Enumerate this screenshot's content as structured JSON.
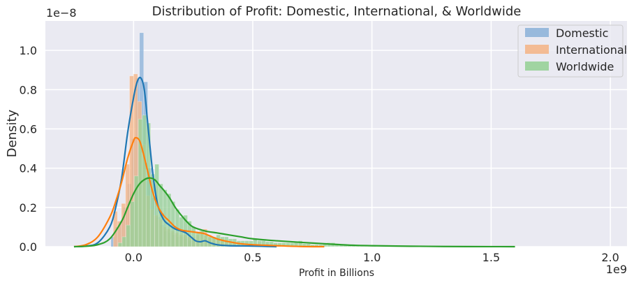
{
  "chart_data": {
    "type": "histogram-kde",
    "title": "Distribution of Profit: Domestic, International, & Worldwide",
    "xlabel": "Profit in Billions",
    "ylabel": "Density",
    "x_offset_label": "1e9",
    "y_offset_label": "1e−8",
    "xlim": [
      -0.37,
      2.07
    ],
    "ylim": [
      0,
      1.15
    ],
    "x_ticks": [
      0.0,
      0.5,
      1.0,
      1.5,
      2.0
    ],
    "x_tick_labels": [
      "0.0",
      "0.5",
      "1.0",
      "1.5",
      "2.0"
    ],
    "y_ticks": [
      0.0,
      0.2,
      0.4,
      0.6,
      0.8,
      1.0
    ],
    "y_tick_labels": [
      "0.0",
      "0.2",
      "0.4",
      "0.6",
      "0.8",
      "1.0"
    ],
    "grid": true,
    "legend_position": "top-right",
    "series": [
      {
        "name": "Domestic",
        "bar_color": "#8fb4d9",
        "line_color": "#1f77b4",
        "bin_width": 0.0172,
        "bins": [
          [
            -0.095,
            0.05
          ],
          [
            -0.078,
            0.1
          ],
          [
            -0.061,
            0.13
          ],
          [
            -0.044,
            0.2
          ],
          [
            -0.026,
            0.32
          ],
          [
            -0.009,
            0.55
          ],
          [
            0.008,
            0.86
          ],
          [
            0.025,
            1.09
          ],
          [
            0.042,
            0.84
          ],
          [
            0.059,
            0.4
          ],
          [
            0.077,
            0.25
          ],
          [
            0.094,
            0.15
          ],
          [
            0.111,
            0.11
          ],
          [
            0.128,
            0.08
          ],
          [
            0.145,
            0.07
          ],
          [
            0.163,
            0.06
          ],
          [
            0.18,
            0.05
          ],
          [
            0.197,
            0.05
          ],
          [
            0.214,
            0.04
          ],
          [
            0.231,
            0.03
          ],
          [
            0.249,
            0.03
          ],
          [
            0.266,
            0.02
          ],
          [
            0.283,
            0.02
          ],
          [
            0.3,
            0.03
          ],
          [
            0.317,
            0.02
          ],
          [
            0.335,
            0.02
          ],
          [
            0.352,
            0.01
          ],
          [
            0.369,
            0.01
          ],
          [
            0.386,
            0.01
          ],
          [
            0.403,
            0.01
          ],
          [
            0.421,
            0.01
          ],
          [
            0.438,
            0.005
          ],
          [
            0.455,
            0.005
          ],
          [
            0.472,
            0.005
          ],
          [
            0.49,
            0.005
          ],
          [
            0.507,
            0.005
          ],
          [
            0.524,
            0.005
          ],
          [
            0.541,
            0.005
          ],
          [
            0.558,
            0.005
          ],
          [
            0.576,
            0.005
          ]
        ],
        "kde": [
          [
            -0.25,
            0.0
          ],
          [
            -0.2,
            0.003
          ],
          [
            -0.15,
            0.02
          ],
          [
            -0.1,
            0.1
          ],
          [
            -0.075,
            0.2
          ],
          [
            -0.05,
            0.35
          ],
          [
            -0.025,
            0.58
          ],
          [
            0.0,
            0.76
          ],
          [
            0.015,
            0.84
          ],
          [
            0.03,
            0.86
          ],
          [
            0.045,
            0.8
          ],
          [
            0.06,
            0.62
          ],
          [
            0.08,
            0.38
          ],
          [
            0.1,
            0.22
          ],
          [
            0.125,
            0.14
          ],
          [
            0.15,
            0.11
          ],
          [
            0.175,
            0.09
          ],
          [
            0.2,
            0.08
          ],
          [
            0.22,
            0.07
          ],
          [
            0.24,
            0.05
          ],
          [
            0.26,
            0.03
          ],
          [
            0.28,
            0.025
          ],
          [
            0.3,
            0.03
          ],
          [
            0.32,
            0.02
          ],
          [
            0.35,
            0.01
          ],
          [
            0.4,
            0.005
          ],
          [
            0.5,
            0.003
          ],
          [
            0.6,
            0.0
          ]
        ]
      },
      {
        "name": "International",
        "bar_color": "#f4b68a",
        "line_color": "#ff7f0e",
        "bin_width": 0.0172,
        "bins": [
          [
            -0.085,
            0.18
          ],
          [
            -0.068,
            0.13
          ],
          [
            -0.051,
            0.22
          ],
          [
            -0.034,
            0.42
          ],
          [
            -0.017,
            0.87
          ],
          [
            0.0,
            0.88
          ],
          [
            0.017,
            0.74
          ],
          [
            0.034,
            0.52
          ],
          [
            0.051,
            0.26
          ],
          [
            0.068,
            0.19
          ],
          [
            0.086,
            0.16
          ],
          [
            0.103,
            0.14
          ],
          [
            0.12,
            0.1
          ],
          [
            0.137,
            0.09
          ],
          [
            0.154,
            0.08
          ],
          [
            0.172,
            0.07
          ],
          [
            0.189,
            0.06
          ],
          [
            0.206,
            0.06
          ],
          [
            0.223,
            0.05
          ],
          [
            0.24,
            0.05
          ],
          [
            0.258,
            0.06
          ],
          [
            0.275,
            0.08
          ],
          [
            0.292,
            0.09
          ],
          [
            0.309,
            0.06
          ],
          [
            0.326,
            0.05
          ],
          [
            0.344,
            0.04
          ],
          [
            0.361,
            0.03
          ],
          [
            0.378,
            0.03
          ],
          [
            0.395,
            0.02
          ],
          [
            0.412,
            0.02
          ],
          [
            0.43,
            0.02
          ],
          [
            0.447,
            0.01
          ],
          [
            0.464,
            0.01
          ],
          [
            0.481,
            0.01
          ],
          [
            0.498,
            0.01
          ],
          [
            0.516,
            0.01
          ],
          [
            0.533,
            0.01
          ],
          [
            0.55,
            0.005
          ],
          [
            0.567,
            0.005
          ],
          [
            0.584,
            0.005
          ],
          [
            0.602,
            0.005
          ],
          [
            0.619,
            0.005
          ]
        ],
        "kde": [
          [
            -0.25,
            0.0
          ],
          [
            -0.2,
            0.01
          ],
          [
            -0.15,
            0.05
          ],
          [
            -0.1,
            0.15
          ],
          [
            -0.075,
            0.23
          ],
          [
            -0.05,
            0.33
          ],
          [
            -0.025,
            0.45
          ],
          [
            0.0,
            0.54
          ],
          [
            0.01,
            0.555
          ],
          [
            0.025,
            0.54
          ],
          [
            0.04,
            0.48
          ],
          [
            0.06,
            0.38
          ],
          [
            0.08,
            0.28
          ],
          [
            0.1,
            0.21
          ],
          [
            0.125,
            0.16
          ],
          [
            0.15,
            0.13
          ],
          [
            0.175,
            0.1
          ],
          [
            0.2,
            0.085
          ],
          [
            0.25,
            0.075
          ],
          [
            0.28,
            0.07
          ],
          [
            0.3,
            0.065
          ],
          [
            0.35,
            0.04
          ],
          [
            0.4,
            0.025
          ],
          [
            0.45,
            0.015
          ],
          [
            0.5,
            0.01
          ],
          [
            0.6,
            0.005
          ],
          [
            0.7,
            0.001
          ],
          [
            0.8,
            0.0
          ]
        ]
      },
      {
        "name": "Worldwide",
        "bar_color": "#98d198",
        "line_color": "#2ca02c",
        "bin_width": 0.0172,
        "bins": [
          [
            -0.065,
            0.02
          ],
          [
            -0.048,
            0.05
          ],
          [
            -0.031,
            0.11
          ],
          [
            -0.014,
            0.23
          ],
          [
            0.003,
            0.36
          ],
          [
            0.02,
            0.65
          ],
          [
            0.037,
            0.67
          ],
          [
            0.054,
            0.63
          ],
          [
            0.071,
            0.37
          ],
          [
            0.089,
            0.42
          ],
          [
            0.106,
            0.32
          ],
          [
            0.123,
            0.29
          ],
          [
            0.14,
            0.27
          ],
          [
            0.157,
            0.23
          ],
          [
            0.175,
            0.19
          ],
          [
            0.192,
            0.15
          ],
          [
            0.209,
            0.16
          ],
          [
            0.226,
            0.13
          ],
          [
            0.243,
            0.1
          ],
          [
            0.261,
            0.07
          ],
          [
            0.278,
            0.08
          ],
          [
            0.295,
            0.06
          ],
          [
            0.312,
            0.05
          ],
          [
            0.329,
            0.05
          ],
          [
            0.347,
            0.06
          ],
          [
            0.364,
            0.05
          ],
          [
            0.381,
            0.05
          ],
          [
            0.398,
            0.04
          ],
          [
            0.415,
            0.04
          ],
          [
            0.433,
            0.03
          ],
          [
            0.45,
            0.03
          ],
          [
            0.467,
            0.03
          ],
          [
            0.484,
            0.03
          ],
          [
            0.501,
            0.04
          ],
          [
            0.519,
            0.03
          ],
          [
            0.536,
            0.03
          ],
          [
            0.553,
            0.025
          ],
          [
            0.57,
            0.025
          ],
          [
            0.587,
            0.02
          ],
          [
            0.605,
            0.02
          ],
          [
            0.622,
            0.02
          ],
          [
            0.639,
            0.02
          ],
          [
            0.656,
            0.02
          ],
          [
            0.673,
            0.025
          ],
          [
            0.691,
            0.03
          ],
          [
            0.708,
            0.015
          ],
          [
            0.725,
            0.015
          ],
          [
            0.742,
            0.01
          ],
          [
            0.759,
            0.01
          ],
          [
            0.777,
            0.01
          ],
          [
            0.794,
            0.015
          ],
          [
            0.811,
            0.02
          ],
          [
            0.828,
            0.02
          ],
          [
            0.845,
            0.01
          ],
          [
            0.863,
            0.01
          ],
          [
            0.88,
            0.01
          ],
          [
            0.897,
            0.005
          ],
          [
            0.914,
            0.005
          ],
          [
            0.931,
            0.005
          ],
          [
            0.949,
            0.005
          ],
          [
            0.966,
            0.005
          ],
          [
            0.983,
            0.005
          ],
          [
            1.0,
            0.005
          ]
        ],
        "kde": [
          [
            -0.25,
            0.0
          ],
          [
            -0.2,
            0.002
          ],
          [
            -0.15,
            0.01
          ],
          [
            -0.1,
            0.04
          ],
          [
            -0.05,
            0.13
          ],
          [
            -0.025,
            0.2
          ],
          [
            0.0,
            0.27
          ],
          [
            0.025,
            0.32
          ],
          [
            0.05,
            0.345
          ],
          [
            0.07,
            0.35
          ],
          [
            0.09,
            0.34
          ],
          [
            0.11,
            0.31
          ],
          [
            0.125,
            0.29
          ],
          [
            0.15,
            0.25
          ],
          [
            0.175,
            0.2
          ],
          [
            0.2,
            0.16
          ],
          [
            0.225,
            0.125
          ],
          [
            0.25,
            0.1
          ],
          [
            0.3,
            0.08
          ],
          [
            0.35,
            0.07
          ],
          [
            0.4,
            0.06
          ],
          [
            0.45,
            0.05
          ],
          [
            0.5,
            0.04
          ],
          [
            0.6,
            0.03
          ],
          [
            0.7,
            0.022
          ],
          [
            0.8,
            0.015
          ],
          [
            0.9,
            0.008
          ],
          [
            1.0,
            0.005
          ],
          [
            1.1,
            0.003
          ],
          [
            1.2,
            0.002
          ],
          [
            1.3,
            0.001
          ],
          [
            1.4,
            0.0005
          ],
          [
            1.5,
            0.0003
          ],
          [
            1.6,
            0.0
          ]
        ]
      }
    ]
  }
}
